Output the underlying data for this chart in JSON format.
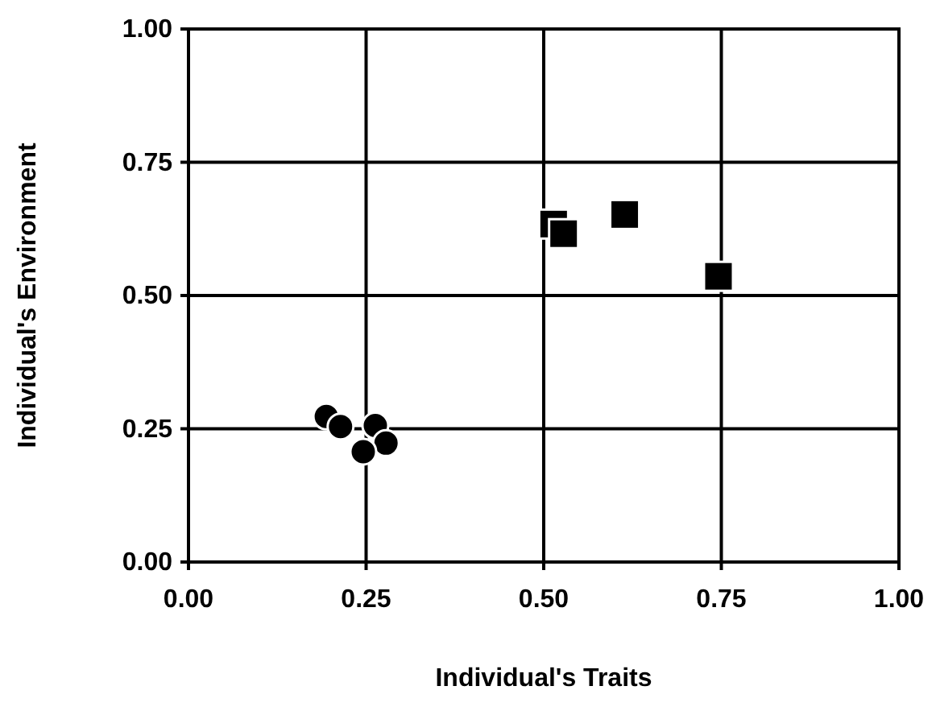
{
  "chart_data": {
    "type": "scatter",
    "xlabel": "Individual's Traits",
    "ylabel": "Individual's Environment",
    "xlim": [
      0,
      1
    ],
    "ylim": [
      0,
      1
    ],
    "xticks": [
      {
        "value": 0,
        "label": "0.00"
      },
      {
        "value": 0.25,
        "label": "0.25"
      },
      {
        "value": 0.5,
        "label": "0.50"
      },
      {
        "value": 0.75,
        "label": "0.75"
      },
      {
        "value": 1,
        "label": "1.00"
      }
    ],
    "yticks": [
      {
        "value": 0,
        "label": "0.00"
      },
      {
        "value": 0.25,
        "label": "0.25"
      },
      {
        "value": 0.5,
        "label": "0.50"
      },
      {
        "value": 0.75,
        "label": "0.75"
      },
      {
        "value": 1,
        "label": "1.00"
      }
    ],
    "grid": true,
    "series": [
      {
        "color": "#000000",
        "marker": "circle",
        "x": [
          0.194,
          0.214,
          0.263,
          0.278,
          0.246
        ],
        "values": [
          0.273,
          0.254,
          0.256,
          0.223,
          0.207
        ]
      },
      {
        "color": "#000000",
        "marker": "square",
        "x": [
          0.514,
          0.528,
          0.614,
          0.746
        ],
        "values": [
          0.634,
          0.616,
          0.652,
          0.536
        ]
      }
    ]
  }
}
